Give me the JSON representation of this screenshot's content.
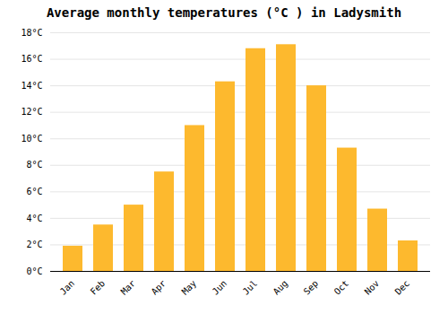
{
  "chart_data": {
    "type": "bar",
    "title": "Average monthly temperatures (°C ) in Ladysmith",
    "categories": [
      "Jan",
      "Feb",
      "Mar",
      "Apr",
      "May",
      "Jun",
      "Jul",
      "Aug",
      "Sep",
      "Oct",
      "Nov",
      "Dec"
    ],
    "values": [
      1.9,
      3.5,
      5.0,
      7.5,
      11.0,
      14.3,
      16.8,
      17.1,
      14.0,
      9.3,
      4.7,
      2.3
    ],
    "color": "#FDB92E",
    "ylim": [
      0,
      18
    ],
    "yticks": [
      {
        "value": 0,
        "label": "0°C"
      },
      {
        "value": 2,
        "label": "2°C"
      },
      {
        "value": 4,
        "label": "4°C"
      },
      {
        "value": 6,
        "label": "6°C"
      },
      {
        "value": 8,
        "label": "8°C"
      },
      {
        "value": 10,
        "label": "10°C"
      },
      {
        "value": 12,
        "label": "12°C"
      },
      {
        "value": 14,
        "label": "14°C"
      },
      {
        "value": 16,
        "label": "16°C"
      },
      {
        "value": 18,
        "label": "18°C"
      }
    ],
    "grid": true
  }
}
